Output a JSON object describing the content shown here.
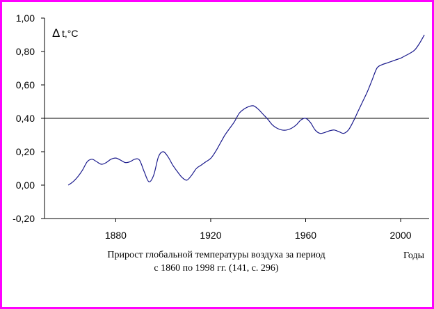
{
  "chart_data": {
    "type": "line",
    "ylabel": "t,°C",
    "ylabel_symbol": "Δ",
    "xlabel": "Годы",
    "caption_line1": "Прирост глобальной температуры воздуха за период",
    "caption_line2": "с 1860 по 1998 гг. (141, с. 296)",
    "xlim": [
      1850,
      2012
    ],
    "ylim": [
      -0.2,
      1.0
    ],
    "x_ticks": [
      1880,
      1920,
      1960,
      2000
    ],
    "y_ticks": [
      -0.2,
      0,
      0.2,
      0.4,
      0.6,
      0.8,
      1.0
    ],
    "y_tick_labels": [
      "-0,20",
      "0,00",
      "0,20",
      "0,40",
      "0,60",
      "0,80",
      "1,00"
    ],
    "reference_line": 0.4,
    "series": [
      {
        "color": "#1a1a8c",
        "x": [
          1860,
          1862,
          1864,
          1866,
          1868,
          1870,
          1872,
          1874,
          1876,
          1878,
          1880,
          1882,
          1884,
          1886,
          1888,
          1890,
          1892,
          1894,
          1896,
          1898,
          1900,
          1902,
          1904,
          1906,
          1908,
          1910,
          1912,
          1914,
          1916,
          1918,
          1920,
          1922,
          1924,
          1926,
          1928,
          1930,
          1932,
          1934,
          1936,
          1938,
          1940,
          1942,
          1944,
          1946,
          1948,
          1950,
          1952,
          1954,
          1956,
          1958,
          1960,
          1962,
          1964,
          1966,
          1968,
          1970,
          1972,
          1974,
          1976,
          1978,
          1980,
          1982,
          1984,
          1986,
          1988,
          1990,
          1992,
          1994,
          1996,
          1998,
          2000,
          2002,
          2004,
          2006,
          2008,
          2010
        ],
        "y": [
          0.0,
          0.02,
          0.05,
          0.09,
          0.14,
          0.155,
          0.14,
          0.125,
          0.135,
          0.155,
          0.162,
          0.15,
          0.135,
          0.14,
          0.155,
          0.15,
          0.08,
          0.02,
          0.06,
          0.17,
          0.2,
          0.17,
          0.12,
          0.08,
          0.045,
          0.03,
          0.06,
          0.1,
          0.12,
          0.14,
          0.16,
          0.2,
          0.25,
          0.3,
          0.34,
          0.38,
          0.43,
          0.455,
          0.47,
          0.475,
          0.455,
          0.425,
          0.395,
          0.36,
          0.34,
          0.33,
          0.33,
          0.34,
          0.36,
          0.39,
          0.4,
          0.375,
          0.33,
          0.31,
          0.315,
          0.325,
          0.33,
          0.32,
          0.31,
          0.33,
          0.38,
          0.44,
          0.5,
          0.56,
          0.63,
          0.7,
          0.72,
          0.73,
          0.74,
          0.75,
          0.76,
          0.775,
          0.79,
          0.81,
          0.85,
          0.9
        ]
      }
    ]
  }
}
